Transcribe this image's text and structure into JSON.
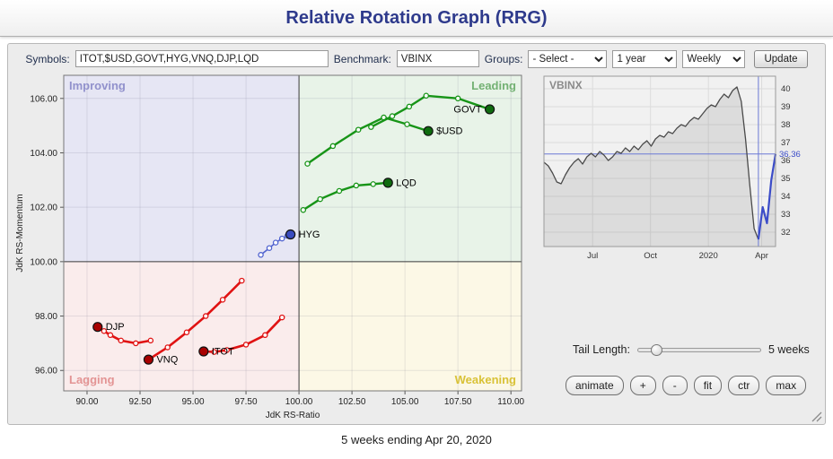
{
  "header": {
    "title": "Relative Rotation Graph (RRG)"
  },
  "toolbar": {
    "symbols_label": "Symbols:",
    "symbols_value": "ITOT,$USD,GOVT,HYG,VNQ,DJP,LQD",
    "benchmark_label": "Benchmark:",
    "benchmark_value": "VBINX",
    "groups_label": "Groups:",
    "groups_value": "- Select -",
    "period_value": "1 year",
    "interval_value": "Weekly",
    "update_label": "Update"
  },
  "controls": {
    "tail_length_label": "Tail Length:",
    "tail_length_value": "5 weeks",
    "buttons": [
      "animate",
      "+",
      "-",
      "fit",
      "ctr",
      "max"
    ]
  },
  "footer": {
    "caption": "5 weeks ending Apr 20, 2020"
  },
  "chart_data": [
    {
      "type": "scatter",
      "title": "Relative Rotation Graph",
      "xlabel": "JdK RS-Ratio",
      "ylabel": "JdK RS-Momentum",
      "xlim": [
        88.9,
        110.5
      ],
      "ylim": [
        95.25,
        106.85
      ],
      "xticks": [
        90,
        92.5,
        95,
        97.5,
        100,
        102.5,
        105,
        107.5,
        110
      ],
      "yticks": [
        96,
        98,
        100,
        102,
        104,
        106
      ],
      "center": [
        100,
        100
      ],
      "quadrants": [
        {
          "id": "improving",
          "label": "Improving",
          "bg": "#e6e6f4",
          "label_color": "#9191cc",
          "pos": "tl"
        },
        {
          "id": "leading",
          "label": "Leading",
          "bg": "#e8f3e8",
          "label_color": "#73b173",
          "pos": "tr"
        },
        {
          "id": "lagging",
          "label": "Lagging",
          "bg": "#faecec",
          "label_color": "#e39494",
          "pos": "bl"
        },
        {
          "id": "weakening",
          "label": "Weakening",
          "bg": "#fcf8e6",
          "label_color": "#d9c237",
          "pos": "br"
        }
      ],
      "series": [
        {
          "name": "$USD",
          "color": "#179417",
          "dot_color": "#0f6b0f",
          "width": 2.4,
          "label_side": "right",
          "points": [
            [
              100.4,
              103.6
            ],
            [
              101.6,
              104.25
            ],
            [
              102.8,
              104.85
            ],
            [
              104.0,
              105.3
            ],
            [
              105.1,
              105.05
            ],
            [
              106.1,
              104.8
            ]
          ]
        },
        {
          "name": "GOVT",
          "color": "#179417",
          "dot_color": "#0f6b0f",
          "width": 2.4,
          "label_side": "left",
          "points": [
            [
              103.4,
              104.95
            ],
            [
              104.4,
              105.35
            ],
            [
              105.2,
              105.7
            ],
            [
              106.0,
              106.1
            ],
            [
              107.5,
              106.0
            ],
            [
              109.0,
              105.6
            ]
          ]
        },
        {
          "name": "LQD",
          "color": "#179417",
          "dot_color": "#0f6b0f",
          "width": 2.4,
          "label_side": "right",
          "points": [
            [
              100.2,
              101.9
            ],
            [
              101.0,
              102.3
            ],
            [
              101.9,
              102.6
            ],
            [
              102.7,
              102.8
            ],
            [
              103.5,
              102.85
            ],
            [
              104.2,
              102.9
            ]
          ]
        },
        {
          "name": "HYG",
          "color": "#5063cf",
          "dot_color": "#3a4cc0",
          "width": 1.6,
          "label_side": "right",
          "points": [
            [
              98.2,
              100.25
            ],
            [
              98.6,
              100.5
            ],
            [
              98.9,
              100.7
            ],
            [
              99.2,
              100.85
            ],
            [
              99.45,
              100.95
            ],
            [
              99.6,
              101.0
            ]
          ]
        },
        {
          "name": "ITOT",
          "color": "#e01212",
          "dot_color": "#a80000",
          "width": 2.6,
          "label_side": "right",
          "points": [
            [
              99.2,
              97.95
            ],
            [
              98.4,
              97.3
            ],
            [
              97.5,
              96.95
            ],
            [
              96.6,
              96.75
            ],
            [
              96.0,
              96.68
            ],
            [
              95.5,
              96.7
            ]
          ]
        },
        {
          "name": "VNQ",
          "color": "#e01212",
          "dot_color": "#a80000",
          "width": 2.6,
          "label_side": "right",
          "points": [
            [
              97.3,
              99.3
            ],
            [
              96.4,
              98.6
            ],
            [
              95.6,
              98.0
            ],
            [
              94.7,
              97.4
            ],
            [
              93.8,
              96.85
            ],
            [
              92.9,
              96.4
            ]
          ]
        },
        {
          "name": "DJP",
          "color": "#e01212",
          "dot_color": "#a80000",
          "width": 2.6,
          "label_side": "right",
          "points": [
            [
              93.0,
              97.1
            ],
            [
              92.3,
              97.0
            ],
            [
              91.6,
              97.1
            ],
            [
              91.1,
              97.3
            ],
            [
              90.8,
              97.45
            ],
            [
              90.5,
              97.6
            ]
          ]
        }
      ]
    },
    {
      "type": "line",
      "title": "VBINX",
      "ylim": [
        31.2,
        40.7
      ],
      "yticks": [
        32,
        33,
        34,
        35,
        36,
        37,
        38,
        39,
        40
      ],
      "x_labels": [
        {
          "label": "Jul",
          "pos": 0.21
        },
        {
          "label": "Oct",
          "pos": 0.46
        },
        {
          "label": "2020",
          "pos": 0.71
        },
        {
          "label": "Apr",
          "pos": 0.94
        }
      ],
      "last_price": 36.36,
      "highlight_weeks": 5,
      "line_color": "#4a4a4a",
      "highlight_color": "#3b4cc8",
      "values": [
        35.9,
        35.7,
        35.3,
        34.8,
        34.7,
        35.2,
        35.6,
        35.9,
        36.1,
        35.8,
        36.2,
        36.4,
        36.2,
        36.5,
        36.3,
        36.0,
        36.2,
        36.5,
        36.4,
        36.7,
        36.5,
        36.8,
        36.6,
        36.9,
        37.1,
        36.8,
        37.2,
        37.4,
        37.3,
        37.6,
        37.5,
        37.8,
        38.0,
        37.9,
        38.2,
        38.4,
        38.3,
        38.6,
        38.9,
        39.1,
        39.0,
        39.4,
        39.7,
        39.5,
        39.9,
        40.1,
        39.3,
        37.2,
        34.6,
        32.2,
        31.6,
        33.4,
        32.5,
        34.9,
        36.36
      ]
    }
  ]
}
